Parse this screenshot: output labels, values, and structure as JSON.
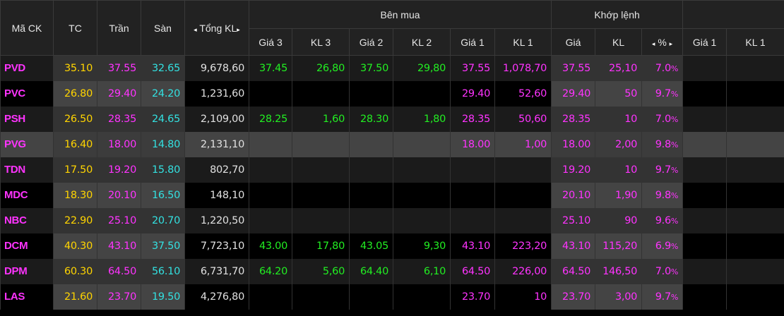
{
  "colors": {
    "code": "#ff33ff",
    "ref": "#ffd400",
    "ceil": "#ff33ff",
    "floor": "#33e0e0",
    "up": "#22ee22",
    "neutral": "#e0e0e0"
  },
  "header": {
    "code": "Mã CK",
    "ref": "TC",
    "ceil": "Trần",
    "floor": "Sàn",
    "total": "Tổng KL",
    "buy_group": "Bên mua",
    "match_group": "Khớp lệnh",
    "buy_cols": [
      "Giá 3",
      "KL 3",
      "Giá 2",
      "KL 2",
      "Giá 1",
      "KL 1"
    ],
    "match_cols": [
      "Giá",
      "KL",
      "%"
    ],
    "sell_cols": [
      "Giá 1",
      "KL 1"
    ],
    "arrow_left": "◂",
    "arrow_right": "▸"
  },
  "rows": [
    {
      "code": "PVD",
      "ref": "35.10",
      "ceil": "37.55",
      "floor": "32.65",
      "total": "9,678,60",
      "b3p": "37.45",
      "b3v": "26,80",
      "b2p": "37.50",
      "b2v": "29,80",
      "b1p": "37.55",
      "b1v": "1,078,70",
      "mp": "37.55",
      "mv": "25,10",
      "pct": "7.0",
      "s1p": "",
      "s1v": "",
      "buycolor": "up",
      "b1color": "ceil",
      "mcolor": "ceil"
    },
    {
      "code": "PVC",
      "ref": "26.80",
      "ceil": "29.40",
      "floor": "24.20",
      "total": "1,231,60",
      "b3p": "",
      "b3v": "",
      "b2p": "",
      "b2v": "",
      "b1p": "29.40",
      "b1v": "52,60",
      "mp": "29.40",
      "mv": "50",
      "pct": "9.7",
      "s1p": "",
      "s1v": "",
      "buycolor": "up",
      "b1color": "ceil",
      "mcolor": "ceil"
    },
    {
      "code": "PSH",
      "ref": "26.50",
      "ceil": "28.35",
      "floor": "24.65",
      "total": "2,109,00",
      "b3p": "28.25",
      "b3v": "1,60",
      "b2p": "28.30",
      "b2v": "1,80",
      "b1p": "28.35",
      "b1v": "50,60",
      "mp": "28.35",
      "mv": "10",
      "pct": "7.0",
      "s1p": "",
      "s1v": "",
      "buycolor": "up",
      "b1color": "ceil",
      "mcolor": "ceil"
    },
    {
      "code": "PVG",
      "ref": "16.40",
      "ceil": "18.00",
      "floor": "14.80",
      "total": "2,131,10",
      "b3p": "",
      "b3v": "",
      "b2p": "",
      "b2v": "",
      "b1p": "18.00",
      "b1v": "1,00",
      "mp": "18.00",
      "mv": "2,00",
      "pct": "9.8",
      "s1p": "",
      "s1v": "",
      "buycolor": "up",
      "b1color": "ceil",
      "mcolor": "ceil",
      "selected": true
    },
    {
      "code": "TDN",
      "ref": "17.50",
      "ceil": "19.20",
      "floor": "15.80",
      "total": "802,70",
      "b3p": "",
      "b3v": "",
      "b2p": "",
      "b2v": "",
      "b1p": "",
      "b1v": "",
      "mp": "19.20",
      "mv": "10",
      "pct": "9.7",
      "s1p": "",
      "s1v": "",
      "buycolor": "up",
      "b1color": "ceil",
      "mcolor": "ceil"
    },
    {
      "code": "MDC",
      "ref": "18.30",
      "ceil": "20.10",
      "floor": "16.50",
      "total": "148,10",
      "b3p": "",
      "b3v": "",
      "b2p": "",
      "b2v": "",
      "b1p": "",
      "b1v": "",
      "mp": "20.10",
      "mv": "1,90",
      "pct": "9.8",
      "s1p": "",
      "s1v": "",
      "buycolor": "up",
      "b1color": "ceil",
      "mcolor": "ceil"
    },
    {
      "code": "NBC",
      "ref": "22.90",
      "ceil": "25.10",
      "floor": "20.70",
      "total": "1,220,50",
      "b3p": "",
      "b3v": "",
      "b2p": "",
      "b2v": "",
      "b1p": "",
      "b1v": "",
      "mp": "25.10",
      "mv": "90",
      "pct": "9.6",
      "s1p": "",
      "s1v": "",
      "buycolor": "up",
      "b1color": "ceil",
      "mcolor": "ceil"
    },
    {
      "code": "DCM",
      "ref": "40.30",
      "ceil": "43.10",
      "floor": "37.50",
      "total": "7,723,10",
      "b3p": "43.00",
      "b3v": "17,80",
      "b2p": "43.05",
      "b2v": "9,30",
      "b1p": "43.10",
      "b1v": "223,20",
      "mp": "43.10",
      "mv": "115,20",
      "pct": "6.9",
      "s1p": "",
      "s1v": "",
      "buycolor": "up",
      "b1color": "ceil",
      "mcolor": "ceil"
    },
    {
      "code": "DPM",
      "ref": "60.30",
      "ceil": "64.50",
      "floor": "56.10",
      "total": "6,731,70",
      "b3p": "64.20",
      "b3v": "5,60",
      "b2p": "64.40",
      "b2v": "6,10",
      "b1p": "64.50",
      "b1v": "226,00",
      "mp": "64.50",
      "mv": "146,50",
      "pct": "7.0",
      "s1p": "",
      "s1v": "",
      "buycolor": "up",
      "b1color": "ceil",
      "mcolor": "ceil"
    },
    {
      "code": "LAS",
      "ref": "21.60",
      "ceil": "23.70",
      "floor": "19.50",
      "total": "4,276,80",
      "b3p": "",
      "b3v": "",
      "b2p": "",
      "b2v": "",
      "b1p": "23.70",
      "b1v": "10",
      "mp": "23.70",
      "mv": "3,00",
      "pct": "9.7",
      "s1p": "",
      "s1v": "",
      "buycolor": "up",
      "b1color": "ceil",
      "mcolor": "ceil"
    }
  ],
  "pct_unit": "%"
}
